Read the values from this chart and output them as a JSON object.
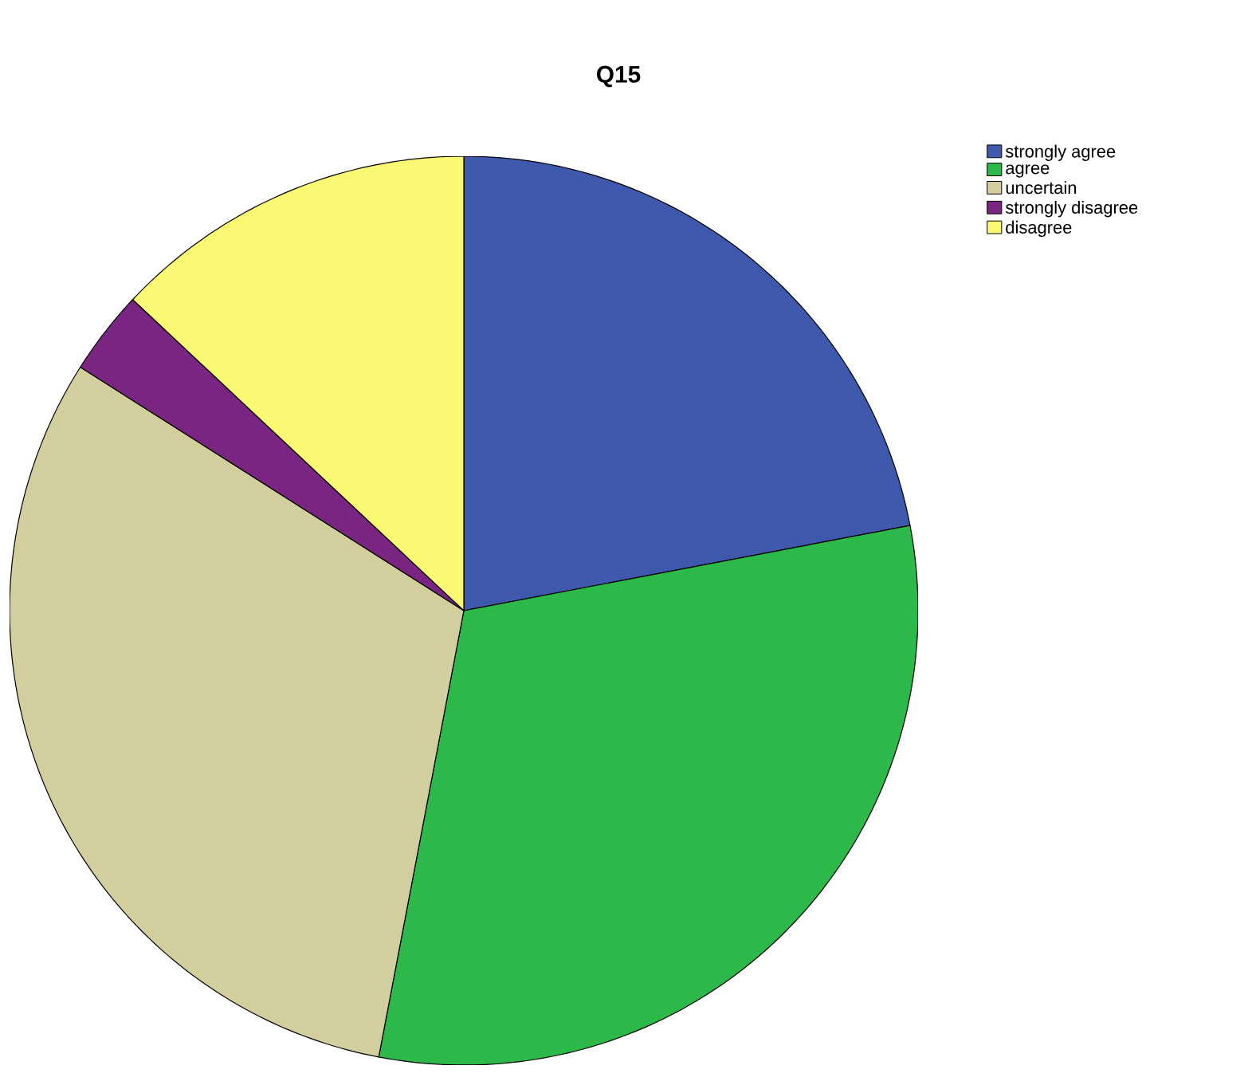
{
  "chart_data": {
    "type": "pie",
    "title": "Q15",
    "categories": [
      "strongly agree",
      "agree",
      "uncertain",
      "strongly disagree",
      "disagree"
    ],
    "values": [
      22,
      31,
      31,
      3,
      13
    ],
    "colors": [
      "#3e58ac",
      "#2db84a",
      "#d3ce9d",
      "#7b2583",
      "#fbf873"
    ],
    "legend": "top right"
  }
}
